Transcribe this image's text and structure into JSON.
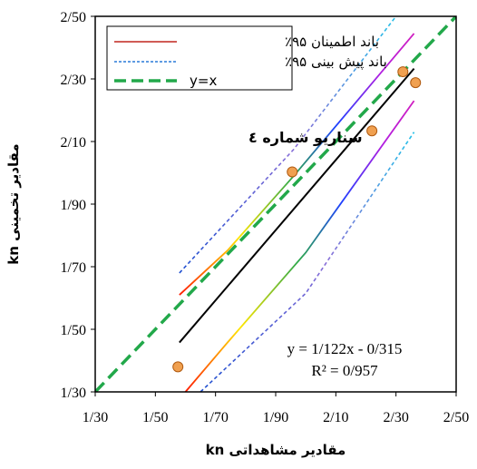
{
  "chart_data": {
    "type": "scatter",
    "xlabel": "مقادیر مشاهداتی kn",
    "ylabel": "مقادیر تخمینی kn",
    "xlim": [
      1.3,
      2.5
    ],
    "ylim": [
      1.3,
      2.5
    ],
    "x_ticks": [
      "1/30",
      "1/50",
      "1/70",
      "1/90",
      "2/10",
      "2/30",
      "2/50"
    ],
    "y_ticks": [
      "1/30",
      "1/50",
      "1/70",
      "1/90",
      "2/10",
      "2/30",
      "2/50"
    ],
    "grid": false,
    "legend_position": "top-left",
    "annotation": "سناریو شماره ٤",
    "trendline": {
      "label": "y = 1/122x - 0/315",
      "r2_label": "R² = 0/957",
      "slope": 1.122,
      "intercept": -0.315,
      "x_range": [
        1.58,
        2.36
      ],
      "color": "#000000"
    },
    "points": {
      "color": "#f0a050",
      "edge": "#b05a10",
      "x": [
        1.575,
        1.955,
        2.22,
        2.323,
        2.365
      ],
      "y": [
        1.38,
        2.003,
        2.134,
        2.323,
        2.288
      ]
    },
    "series": [
      {
        "name": "باند اطمینان ۹۵٪",
        "style": "solid-gradient",
        "upper": {
          "x": [
            1.58,
            1.74,
            1.96,
            2.36
          ],
          "y": [
            1.61,
            1.752,
            1.99,
            2.445
          ]
        },
        "lower": {
          "x": [
            1.6,
            1.74,
            2.0,
            2.36
          ],
          "y": [
            1.3,
            1.458,
            1.745,
            2.23
          ]
        }
      },
      {
        "name": "باند پیش بینی ۹۵٪",
        "style": "dashed-gradient",
        "upper": {
          "x": [
            1.58,
            1.96,
            2.3
          ],
          "y": [
            1.68,
            2.075,
            2.5
          ]
        },
        "lower": {
          "x": [
            1.65,
            2.0,
            2.36
          ],
          "y": [
            1.3,
            1.615,
            2.13
          ]
        }
      },
      {
        "name": "y=x",
        "style": "dashed",
        "color": "#22a84a",
        "x": [
          1.3,
          2.5
        ],
        "y": [
          1.3,
          2.5
        ]
      }
    ]
  }
}
